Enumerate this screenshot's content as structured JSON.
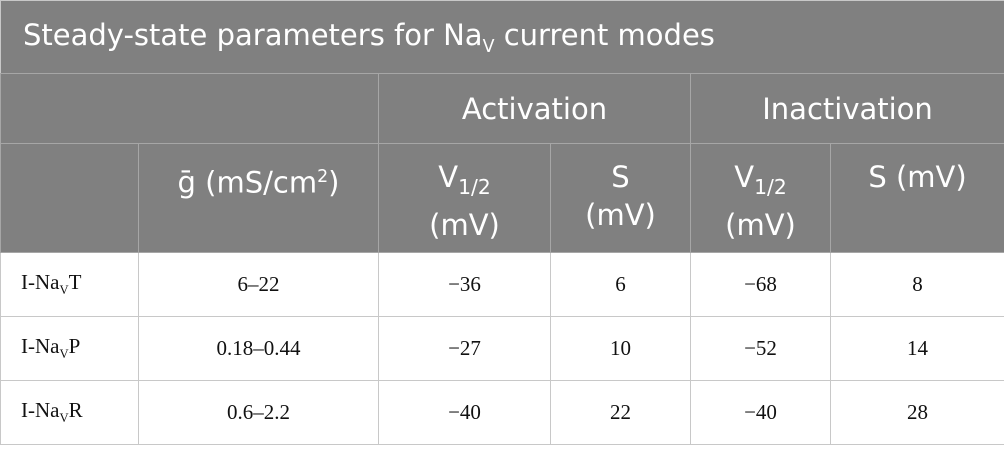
{
  "title": [
    "Steady-state parameters for Na",
    "V",
    " current modes"
  ],
  "header": {
    "groups": [
      "Activation",
      "Inactivation"
    ],
    "columns": [
      [
        "ḡ (mS/cm",
        "2",
        ")"
      ],
      [
        "V",
        "1/2",
        "(mV)"
      ],
      [
        "S",
        "(mV)"
      ],
      [
        "V",
        "1/2",
        "(mV)"
      ],
      [
        "S (mV)"
      ]
    ]
  },
  "table": {
    "rows": [
      [
        [
          "I-Na",
          "V",
          "T"
        ],
        "6–22",
        "−36",
        "6",
        "−68",
        "8"
      ],
      [
        [
          "I-Na",
          "V",
          "P"
        ],
        "0.18–0.44",
        "−27",
        "10",
        "−52",
        "14"
      ],
      [
        [
          "I-Na",
          "V",
          "R"
        ],
        "0.6–2.2",
        "−40",
        "22",
        "−40",
        "28"
      ]
    ]
  }
}
